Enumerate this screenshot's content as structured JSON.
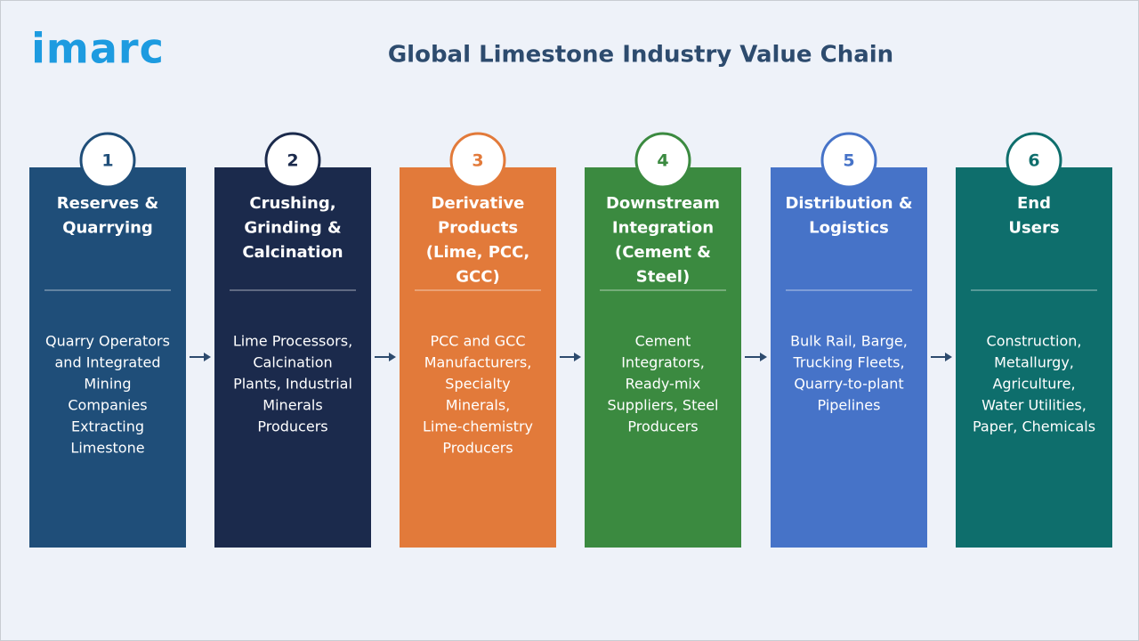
{
  "logo": "imarc",
  "title": "Global Limestone Industry Value Chain",
  "stages": [
    {
      "number": "1",
      "title": [
        "Reserves &",
        "Quarrying"
      ],
      "description": [
        "Quarry Operators",
        "and Integrated",
        "Mining",
        "Companies",
        "Extracting",
        "Limestone"
      ]
    },
    {
      "number": "2",
      "title": [
        "Crushing,",
        "Grinding &",
        "Calcination"
      ],
      "description": [
        "Lime Processors,",
        "Calcination",
        "Plants, Industrial",
        "Minerals",
        "Producers"
      ]
    },
    {
      "number": "3",
      "title": [
        "Derivative",
        "Products",
        "(Lime, PCC,",
        "GCC)"
      ],
      "description": [
        "PCC and GCC",
        "Manufacturers,",
        "Specialty",
        "Minerals,",
        "Lime-chemistry",
        "Producers"
      ]
    },
    {
      "number": "4",
      "title": [
        "Downstream",
        "Integration",
        "(Cement &",
        "Steel)"
      ],
      "description": [
        "Cement",
        "Integrators,",
        "Ready-mix",
        "Suppliers, Steel",
        "Producers"
      ]
    },
    {
      "number": "5",
      "title": [
        "Distribution &",
        "Logistics"
      ],
      "description": [
        "Bulk Rail, Barge,",
        "Trucking Fleets,",
        "Quarry-to-plant",
        "Pipelines"
      ]
    },
    {
      "number": "6",
      "title": [
        "End",
        "Users"
      ],
      "description": [
        "Construction,",
        "Metallurgy,",
        "Agriculture,",
        "Water Utilities,",
        "Paper, Chemicals"
      ]
    }
  ]
}
